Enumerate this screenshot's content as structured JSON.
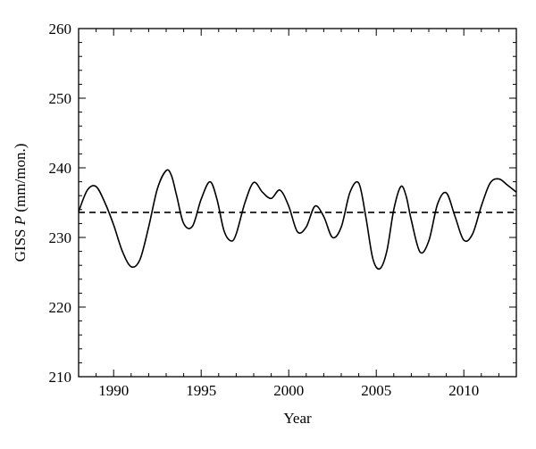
{
  "chart_data": {
    "type": "line",
    "xlabel": "Year",
    "ylabel_prefix": "GISS ",
    "ylabel_var": "P",
    "ylabel_suffix": " (mm/mon.)",
    "xlim": [
      1988,
      2013
    ],
    "ylim": [
      210,
      260
    ],
    "x_ticks": [
      1990,
      1995,
      2000,
      2005,
      2010
    ],
    "y_ticks": [
      210,
      220,
      230,
      240,
      250,
      260
    ],
    "grid": false,
    "series": [
      {
        "style": "solid",
        "color": "#000000",
        "x": [
          1988.0,
          1988.5,
          1989.0,
          1989.5,
          1990.0,
          1990.5,
          1991.0,
          1991.5,
          1992.0,
          1992.5,
          1993.0,
          1993.3,
          1993.6,
          1994.0,
          1994.5,
          1995.0,
          1995.5,
          1995.9,
          1996.3,
          1996.7,
          1997.0,
          1997.5,
          1998.0,
          1998.5,
          1999.0,
          1999.5,
          2000.0,
          2000.5,
          2001.0,
          2001.5,
          2002.0,
          2002.5,
          2003.0,
          2003.5,
          2004.0,
          2004.4,
          2004.8,
          2005.2,
          2005.6,
          2006.0,
          2006.4,
          2006.7,
          2007.0,
          2007.5,
          2008.0,
          2008.5,
          2009.0,
          2009.5,
          2010.0,
          2010.5,
          2011.0,
          2011.5,
          2012.0,
          2012.5,
          2013.0
        ],
        "y": [
          233.7,
          236.8,
          237.3,
          235.0,
          231.8,
          228.0,
          225.8,
          226.8,
          231.5,
          237.0,
          239.6,
          238.9,
          236.0,
          232.0,
          231.6,
          235.5,
          238.0,
          235.5,
          231.0,
          229.5,
          230.5,
          235.0,
          237.9,
          236.5,
          235.6,
          236.8,
          234.5,
          230.8,
          231.5,
          234.5,
          233.0,
          230.0,
          231.5,
          236.5,
          237.8,
          233.0,
          227.0,
          225.5,
          228.0,
          234.0,
          237.3,
          236.0,
          232.5,
          227.9,
          229.5,
          234.8,
          236.4,
          233.0,
          229.6,
          230.5,
          234.5,
          237.8,
          238.4,
          237.5,
          236.5
        ]
      },
      {
        "style": "dashed",
        "color": "#000000",
        "x": [
          1988,
          2013
        ],
        "y": [
          233.6,
          233.6
        ]
      }
    ]
  }
}
